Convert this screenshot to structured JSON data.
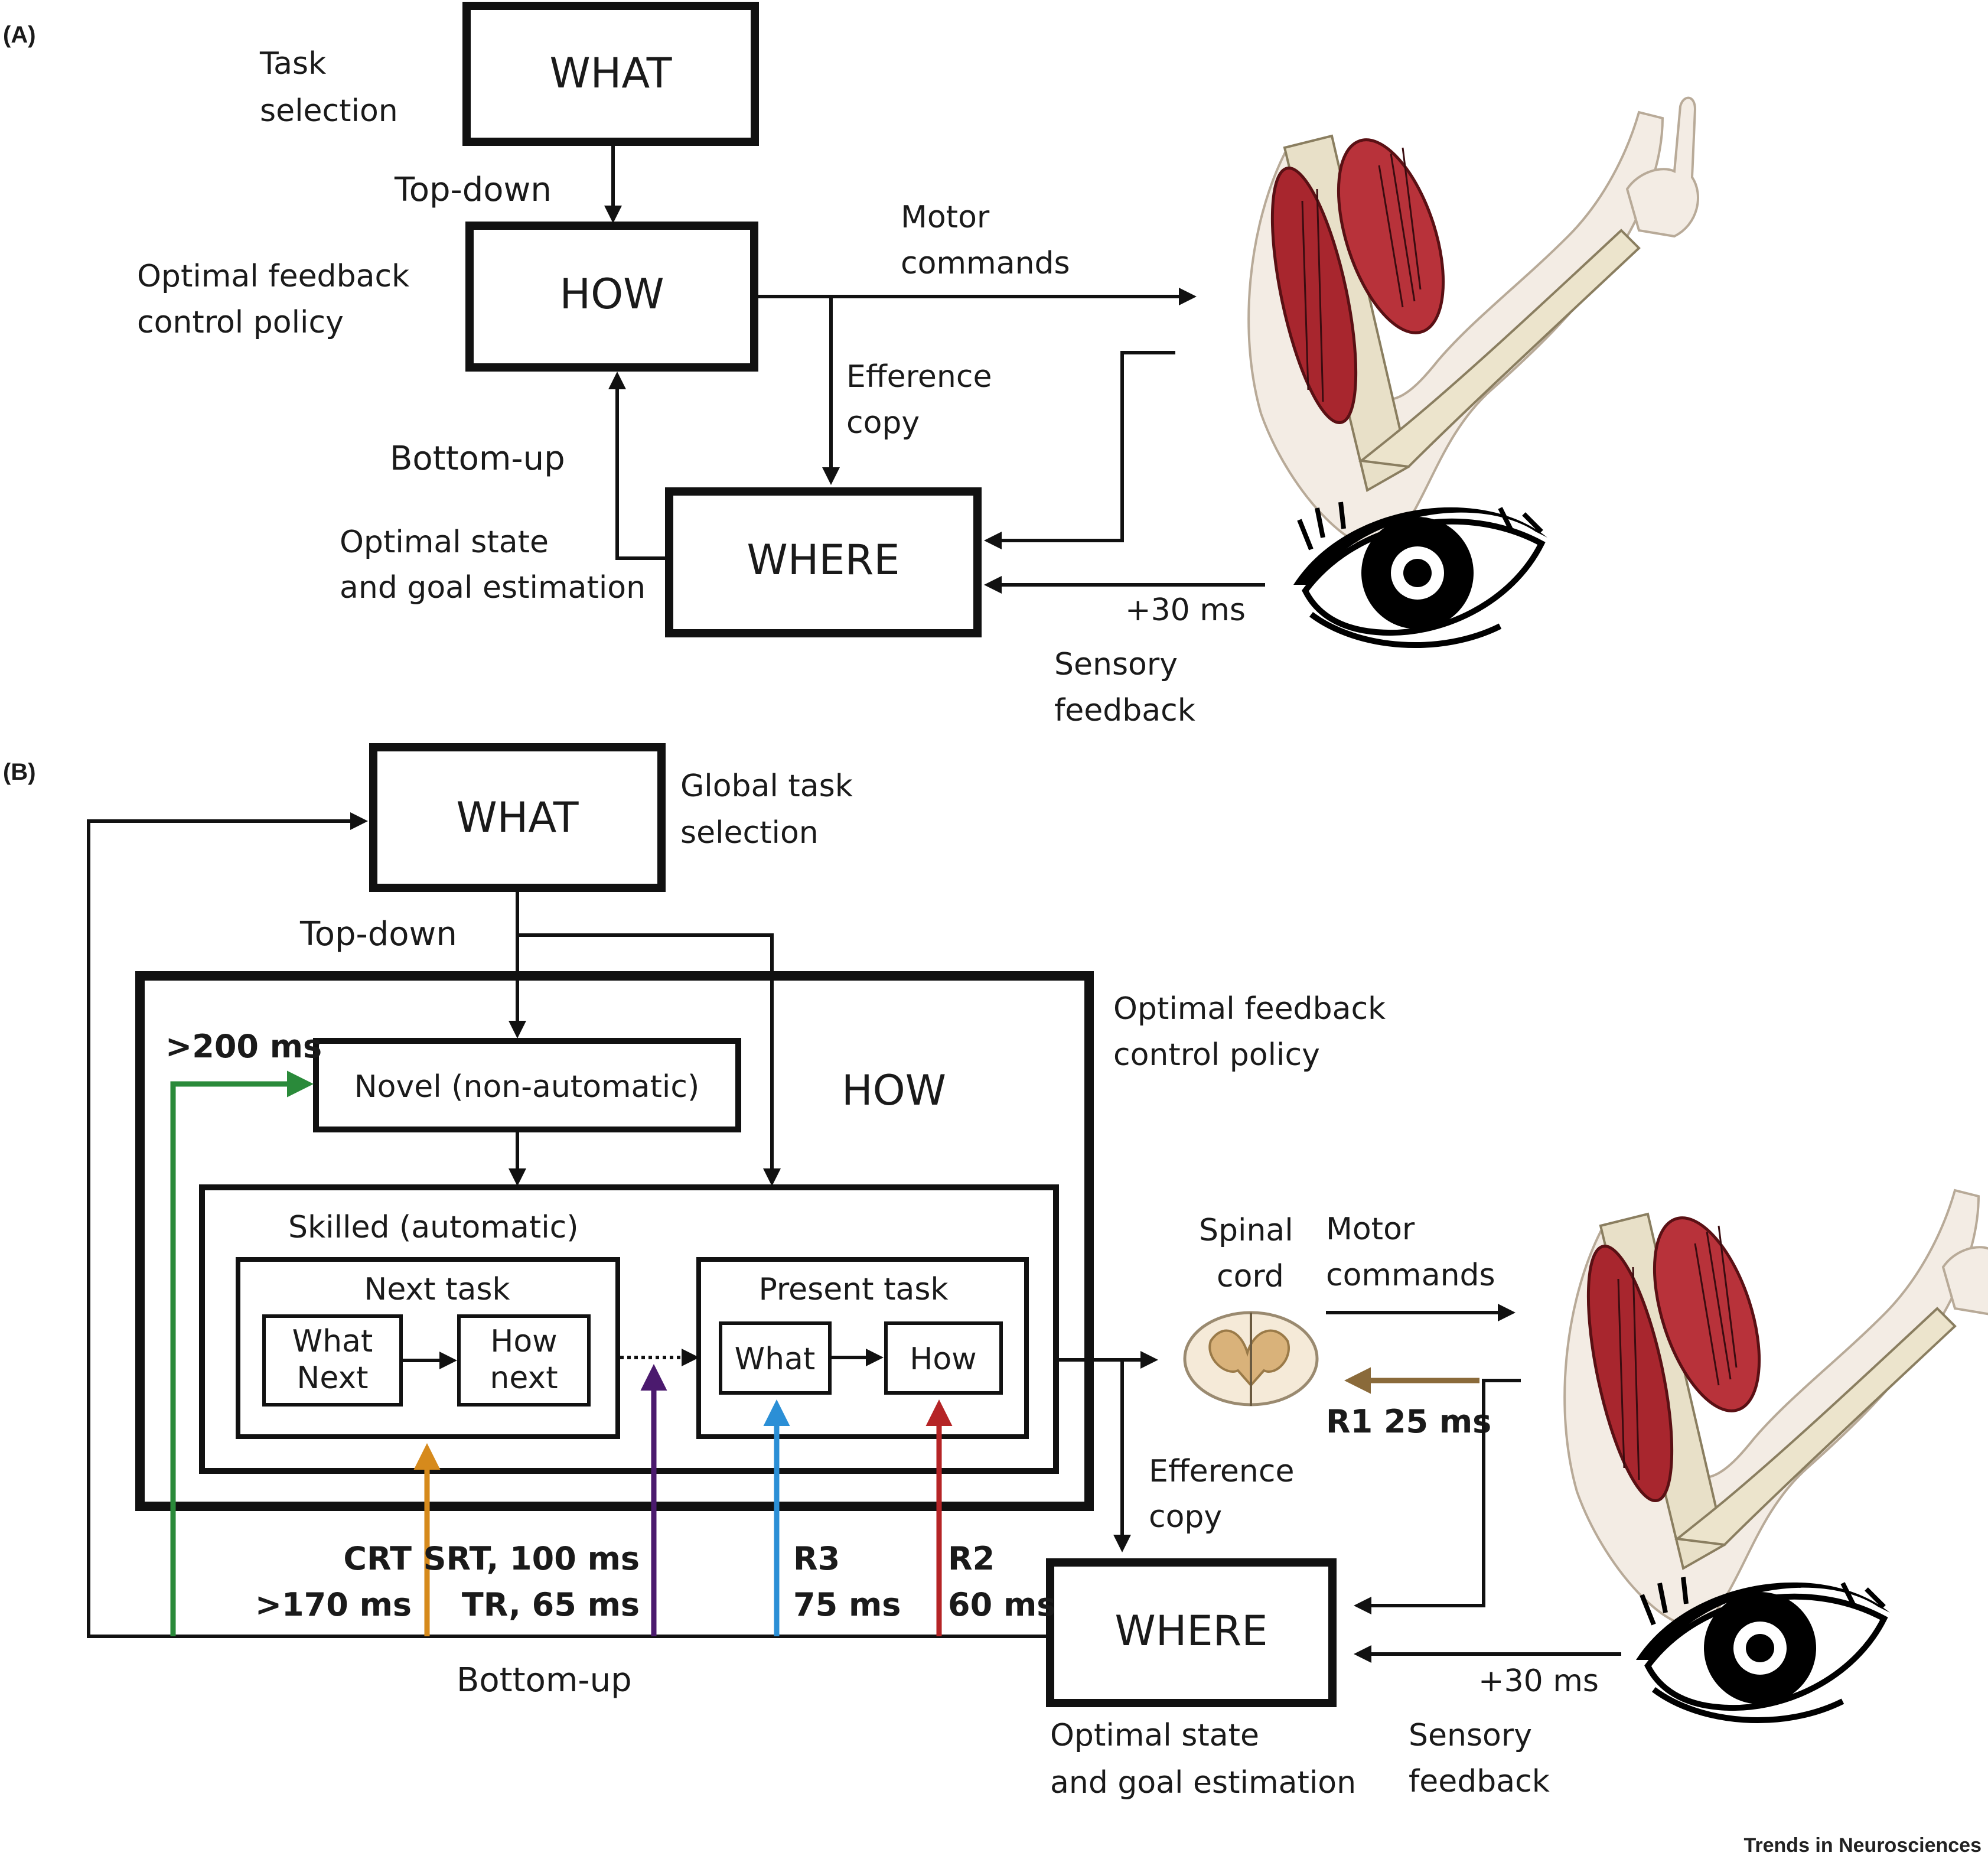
{
  "panel_a": {
    "label": "(A)",
    "what_box": "WHAT",
    "how_box": "HOW",
    "where_box": "WHERE",
    "task_selection": [
      "Task",
      "selection"
    ],
    "top_down": "Top-down",
    "policy": [
      "Optimal feedback",
      "control policy"
    ],
    "motor_commands": [
      "Motor",
      "commands"
    ],
    "efference_copy": [
      "Efference",
      "copy"
    ],
    "bottom_up": "Bottom-up",
    "estimation": [
      "Optimal state",
      "and goal estimation"
    ],
    "delay": "+30 ms",
    "sensory_feedback": [
      "Sensory",
      "feedback"
    ]
  },
  "panel_b": {
    "label": "(B)",
    "what_box": "WHAT",
    "global_task": [
      "Global task",
      "selection"
    ],
    "top_down": "Top-down",
    "policy": [
      "Optimal feedback",
      "control policy"
    ],
    "how_title": "HOW",
    "novel_box": "Novel (non-automatic)",
    "novel_latency": ">200 ms",
    "skilled_title": "Skilled (automatic)",
    "next_task": "Next task",
    "what_next": [
      "What",
      "Next"
    ],
    "how_next": [
      "How",
      "next"
    ],
    "present_task": "Present task",
    "what_small": "What",
    "how_small": "How",
    "spinal_cord": [
      "Spinal",
      "cord"
    ],
    "motor_commands": [
      "Motor",
      "commands"
    ],
    "r1": "R1 25 ms",
    "efference_copy": [
      "Efference",
      "copy"
    ],
    "crt": [
      "CRT",
      ">170 ms"
    ],
    "srt_tr": [
      "SRT, 100 ms",
      "TR, 65 ms"
    ],
    "r3": [
      "R3",
      "75 ms"
    ],
    "r2": [
      "R2",
      "60 ms"
    ],
    "where_box": "WHERE",
    "bottom_up": "Bottom-up",
    "delay": "+30 ms",
    "estimation": [
      "Optimal state",
      "and goal estimation"
    ],
    "sensory_feedback": [
      "Sensory",
      "feedback"
    ]
  },
  "colors": {
    "green": "#2a8a3a",
    "orange": "#d68a1c",
    "purple": "#4b1a6e",
    "blue": "#2b8fd6",
    "red": "#b52426",
    "brown": "#8a6a3a"
  },
  "credit": "Trends in Neurosciences"
}
